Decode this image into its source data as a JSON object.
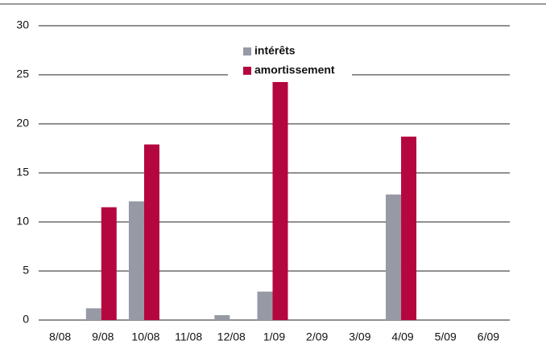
{
  "chart_data": {
    "type": "bar",
    "categories": [
      "8/08",
      "9/08",
      "10/08",
      "11/08",
      "12/08",
      "1/09",
      "2/09",
      "3/09",
      "4/09",
      "5/09",
      "6/09"
    ],
    "series": [
      {
        "name": "intérêts",
        "color": "#979aa5",
        "values": [
          0,
          1.2,
          12.1,
          0,
          0.5,
          2.9,
          0,
          0,
          12.8,
          0,
          0
        ]
      },
      {
        "name": "amortissement",
        "color": "#b5073f",
        "values": [
          0,
          11.5,
          17.9,
          0,
          0,
          24.3,
          0,
          0,
          18.7,
          0,
          0
        ]
      }
    ],
    "ylim": [
      0,
      30
    ],
    "yticks": [
      0,
      5,
      10,
      15,
      20,
      25,
      30
    ],
    "grid": true
  }
}
